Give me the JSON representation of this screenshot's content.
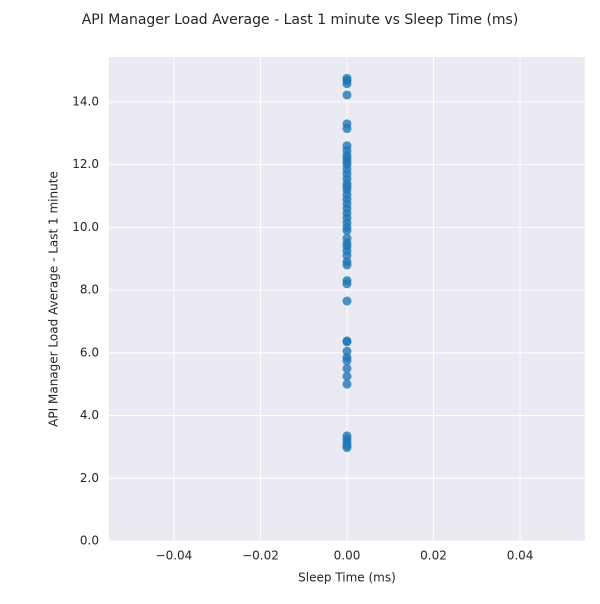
{
  "chart_data": {
    "type": "scatter",
    "title": "API Manager Load Average - Last 1 minute vs Sleep Time (ms)",
    "xlabel": "Sleep Time (ms)",
    "ylabel": "API Manager Load Average - Last 1 minute",
    "x": [
      0,
      0,
      0,
      0,
      0,
      0,
      0,
      0,
      0,
      0,
      0,
      0,
      0,
      0,
      0,
      0,
      0,
      0,
      0,
      0,
      0,
      0,
      0,
      0,
      0,
      0,
      0,
      0,
      0,
      0,
      0,
      0,
      0,
      0,
      0,
      0,
      0,
      0,
      0,
      0,
      0,
      0,
      0,
      0,
      0,
      0,
      0,
      0,
      0,
      0
    ],
    "y": [
      14.75,
      14.68,
      14.58,
      14.22,
      13.3,
      13.15,
      12.6,
      12.45,
      12.3,
      12.2,
      12.1,
      12.0,
      11.85,
      11.7,
      11.55,
      11.4,
      11.3,
      11.2,
      11.05,
      10.9,
      10.75,
      10.6,
      10.45,
      10.3,
      10.15,
      10.0,
      9.9,
      9.65,
      9.5,
      9.4,
      9.25,
      9.1,
      8.9,
      8.8,
      8.3,
      8.2,
      7.65,
      6.38,
      6.35,
      6.05,
      5.85,
      5.75,
      5.5,
      5.25,
      5.0,
      3.35,
      3.25,
      3.15,
      3.05,
      2.98
    ],
    "color": "#1f77b4",
    "xlim": [
      -0.055,
      0.055
    ],
    "xticks": [
      {
        "value": -0.04,
        "label": "−0.04"
      },
      {
        "value": -0.02,
        "label": "−0.02"
      },
      {
        "value": 0,
        "label": "0.00"
      },
      {
        "value": 0.02,
        "label": "0.02"
      },
      {
        "value": 0.04,
        "label": "0.04"
      }
    ],
    "ylim": [
      0,
      15.43
    ],
    "yticks": [
      {
        "value": 0,
        "label": "0.0"
      },
      {
        "value": 2,
        "label": "2.0"
      },
      {
        "value": 4,
        "label": "4.0"
      },
      {
        "value": 6,
        "label": "6.0"
      },
      {
        "value": 8,
        "label": "8.0"
      },
      {
        "value": 10,
        "label": "10.0"
      },
      {
        "value": 12,
        "label": "12.0"
      },
      {
        "value": 14,
        "label": "14.0"
      }
    ],
    "grid": true
  }
}
